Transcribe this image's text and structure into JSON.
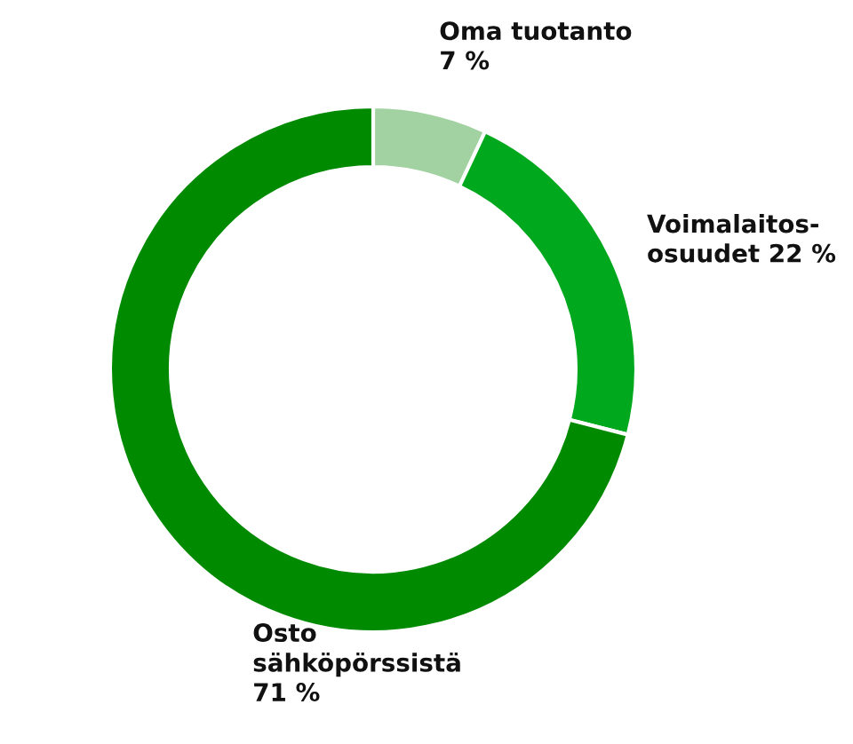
{
  "chart_data": {
    "type": "donut",
    "categories": [
      "Oma tuotanto\n7 %",
      "Voimalaitos-\nosuudet 22 %",
      "Osto\nsähköpörssistä\n71 %"
    ],
    "values": [
      7,
      22,
      71
    ],
    "colors": [
      "#a2d2a2",
      "#00a81e",
      "#008a00"
    ],
    "legend": false
  }
}
